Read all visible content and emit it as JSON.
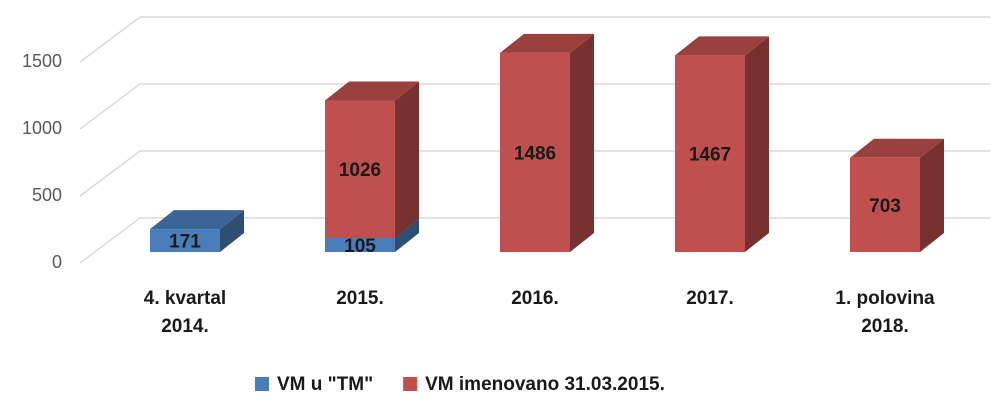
{
  "chart_data": {
    "type": "bar3d_stacked",
    "categories": [
      "4. kvartal 2014.",
      "2015.",
      "2016.",
      "2017.",
      "1. polovina 2018."
    ],
    "series": [
      {
        "name": "VM u \"TM\"",
        "color": "#4a7ebb",
        "values": [
          171,
          105,
          null,
          null,
          null
        ]
      },
      {
        "name": "VM imenovano 31.03.2015.",
        "color": "#c0504d",
        "values": [
          null,
          1026,
          1486,
          1467,
          703
        ]
      }
    ],
    "ylim": [
      0,
      1500
    ],
    "yticks": [
      0,
      500,
      1000,
      1500
    ],
    "grid": true,
    "legend": "bottom"
  }
}
